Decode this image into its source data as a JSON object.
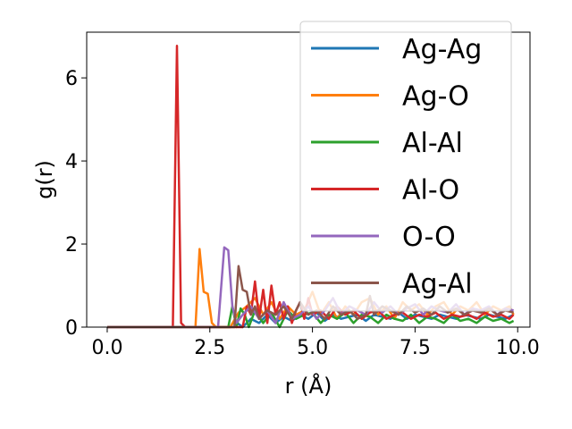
{
  "chart_data": {
    "type": "line",
    "title": "",
    "xlabel": "r (Å)",
    "ylabel": "g(r)",
    "xlim": [
      -0.5,
      10.3
    ],
    "ylim": [
      0,
      7.1
    ],
    "x_ticks": [
      0.0,
      2.5,
      5.0,
      7.5,
      10.0
    ],
    "x_tick_labels": [
      "0.0",
      "2.5",
      "5.0",
      "7.5",
      "10.0"
    ],
    "y_ticks": [
      0,
      2,
      4,
      6
    ],
    "y_tick_labels": [
      "0",
      "2",
      "4",
      "6"
    ],
    "grid": false,
    "legend_position": "top-right",
    "series": [
      {
        "name": "Ag-Ag",
        "color": "#1f77b4",
        "x": [
          0.0,
          3.0,
          3.1,
          3.3,
          3.5,
          3.7,
          3.9,
          4.1,
          4.3,
          4.5,
          4.7,
          4.9,
          5.1,
          5.3,
          5.5,
          5.7,
          5.9,
          6.1,
          6.3,
          6.5,
          6.7,
          6.9,
          7.1,
          7.3,
          7.5,
          7.7,
          7.9,
          8.1,
          8.3,
          8.5,
          8.7,
          8.9,
          9.1,
          9.3,
          9.5,
          9.7,
          9.9
        ],
        "y": [
          0.0,
          0.0,
          0.15,
          0.0,
          0.2,
          0.1,
          0.3,
          0.1,
          0.25,
          0.15,
          0.3,
          0.2,
          0.35,
          0.15,
          0.3,
          0.2,
          0.25,
          0.3,
          0.15,
          0.3,
          0.25,
          0.2,
          0.35,
          0.2,
          0.3,
          0.25,
          0.2,
          0.3,
          0.25,
          0.2,
          0.3,
          0.25,
          0.2,
          0.3,
          0.25,
          0.2,
          0.3
        ]
      },
      {
        "name": "Ag-O",
        "color": "#ff7f0e",
        "x": [
          0.0,
          2.15,
          2.25,
          2.35,
          2.45,
          2.55,
          2.65,
          3.0,
          3.2,
          3.4,
          3.6,
          3.8,
          4.0,
          4.2,
          4.4,
          4.6,
          4.8,
          5.0,
          5.2,
          5.4,
          5.6,
          5.8,
          6.0,
          6.2,
          6.4,
          6.6,
          6.8,
          7.0,
          7.2,
          7.4,
          7.6,
          7.8,
          8.0,
          8.2,
          8.4,
          8.6,
          8.8,
          9.0,
          9.2,
          9.4,
          9.6,
          9.8,
          9.9
        ],
        "y": [
          0.0,
          0.0,
          1.88,
          0.85,
          0.8,
          0.1,
          0.0,
          0.0,
          0.35,
          0.5,
          0.7,
          0.3,
          0.6,
          0.2,
          0.5,
          0.3,
          0.4,
          0.85,
          0.3,
          0.6,
          0.2,
          0.5,
          0.3,
          0.6,
          0.7,
          0.3,
          0.5,
          0.2,
          0.6,
          0.4,
          0.55,
          0.3,
          0.5,
          0.6,
          0.3,
          0.5,
          0.4,
          0.6,
          0.3,
          0.5,
          0.4,
          0.5,
          0.3
        ]
      },
      {
        "name": "Al-Al",
        "color": "#2ca02c",
        "x": [
          0.0,
          2.95,
          3.05,
          3.15,
          3.25,
          3.35,
          3.45,
          3.6,
          3.8,
          4.0,
          4.2,
          4.4,
          4.6,
          4.8,
          5.0,
          5.2,
          5.4,
          5.6,
          5.8,
          6.0,
          6.2,
          6.4,
          6.6,
          6.8,
          7.0,
          7.2,
          7.4,
          7.6,
          7.8,
          8.0,
          8.2,
          8.4,
          8.6,
          8.8,
          9.0,
          9.2,
          9.4,
          9.6,
          9.8,
          9.9
        ],
        "y": [
          0.0,
          0.0,
          0.5,
          0.0,
          0.45,
          0.3,
          0.0,
          0.4,
          0.1,
          0.35,
          0.0,
          0.4,
          0.2,
          0.3,
          0.35,
          0.1,
          0.3,
          0.2,
          0.35,
          0.1,
          0.3,
          0.25,
          0.1,
          0.3,
          0.2,
          0.15,
          0.3,
          0.1,
          0.25,
          0.2,
          0.1,
          0.3,
          0.15,
          0.2,
          0.1,
          0.25,
          0.15,
          0.2,
          0.1,
          0.15
        ]
      },
      {
        "name": "Al-O",
        "color": "#d62728",
        "x": [
          0.0,
          1.6,
          1.7,
          1.8,
          1.9,
          2.0,
          3.3,
          3.4,
          3.5,
          3.6,
          3.7,
          3.8,
          3.9,
          4.0,
          4.1,
          4.2,
          4.3,
          4.4,
          4.5,
          4.6,
          4.7,
          4.8,
          4.9,
          5.0,
          5.2,
          5.4,
          5.6,
          5.8,
          6.0,
          6.2,
          6.4,
          6.6,
          6.8,
          7.0,
          7.2,
          7.4,
          7.6,
          7.8,
          8.0,
          8.2,
          8.4,
          8.6,
          8.8,
          9.0,
          9.2,
          9.4,
          9.6,
          9.8,
          9.9
        ],
        "y": [
          0.0,
          0.0,
          6.77,
          0.1,
          0.0,
          0.0,
          0.0,
          0.5,
          0.3,
          1.1,
          0.2,
          0.9,
          0.1,
          1.0,
          0.3,
          0.6,
          0.2,
          0.5,
          0.1,
          0.4,
          0.6,
          0.2,
          0.7,
          0.3,
          0.4,
          0.2,
          0.5,
          0.3,
          0.4,
          0.2,
          0.35,
          0.4,
          0.2,
          0.3,
          0.35,
          0.2,
          0.3,
          0.25,
          0.35,
          0.2,
          0.3,
          0.25,
          0.3,
          0.2,
          0.35,
          0.25,
          0.3,
          0.2,
          0.3
        ]
      },
      {
        "name": "O-O",
        "color": "#9467bd",
        "x": [
          0.0,
          2.7,
          2.85,
          2.95,
          3.05,
          3.15,
          3.3,
          3.5,
          3.7,
          3.9,
          4.1,
          4.3,
          4.5,
          4.7,
          4.9,
          5.1,
          5.3,
          5.5,
          5.7,
          5.9,
          6.1,
          6.3,
          6.5,
          6.7,
          6.9,
          7.1,
          7.3,
          7.5,
          7.7,
          7.9,
          8.1,
          8.3,
          8.5,
          8.7,
          8.9,
          9.1,
          9.3,
          9.5,
          9.7,
          9.9
        ],
        "y": [
          0.0,
          0.0,
          1.92,
          1.85,
          0.5,
          0.1,
          0.3,
          0.5,
          0.2,
          0.4,
          0.1,
          0.6,
          0.2,
          0.3,
          0.5,
          0.2,
          0.4,
          0.7,
          0.3,
          0.5,
          0.4,
          0.3,
          0.6,
          0.35,
          0.5,
          0.3,
          0.45,
          0.55,
          0.3,
          0.5,
          0.4,
          0.35,
          0.55,
          0.3,
          0.45,
          0.4,
          0.5,
          0.3,
          0.45,
          0.4
        ]
      },
      {
        "name": "Ag-Al",
        "color": "#8c564b",
        "x": [
          0.0,
          3.1,
          3.2,
          3.3,
          3.4,
          3.5,
          3.6,
          3.7,
          3.9,
          4.1,
          4.3,
          4.5,
          4.7,
          4.9,
          5.1,
          5.3,
          5.5,
          5.7,
          5.9,
          6.1,
          6.3,
          6.4,
          6.5,
          6.7,
          6.9,
          7.1,
          7.3,
          7.5,
          7.7,
          7.9,
          8.1,
          8.3,
          8.5,
          8.7,
          8.9,
          9.1,
          9.3,
          9.5,
          9.7,
          9.9
        ],
        "y": [
          0.0,
          0.0,
          1.47,
          0.9,
          0.85,
          0.3,
          0.5,
          0.2,
          0.4,
          0.3,
          0.5,
          0.2,
          0.6,
          0.3,
          0.4,
          0.2,
          0.5,
          0.3,
          0.4,
          0.2,
          0.3,
          0.75,
          0.3,
          0.5,
          0.4,
          0.3,
          0.5,
          0.35,
          0.45,
          0.3,
          0.5,
          0.35,
          0.45,
          0.3,
          0.4,
          0.35,
          0.45,
          0.3,
          0.4,
          0.35
        ]
      }
    ]
  }
}
